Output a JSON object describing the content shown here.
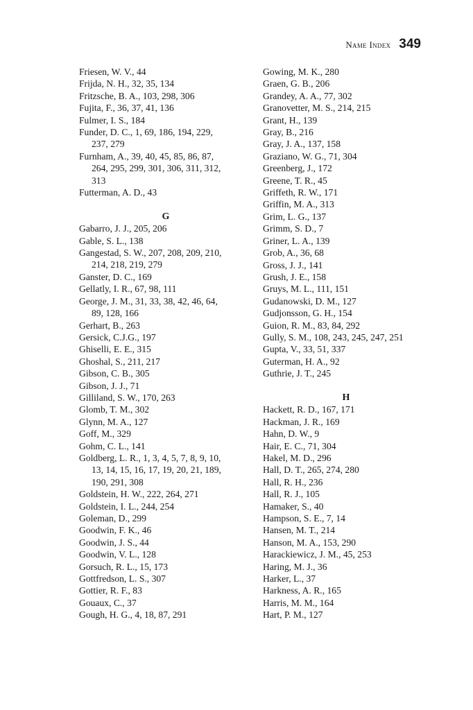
{
  "header": {
    "running_title": "Name Index",
    "page_number": "349"
  },
  "columns": [
    {
      "blocks": [
        {
          "type": "entries",
          "entries": [
            [
              "Friesen, W. V., 44"
            ],
            [
              "Frijda, N. H., 32, 35, 134"
            ],
            [
              "Fritzsche, B. A., 103, 298, 306"
            ],
            [
              "Fujita, F., 36, 37, 41, 136"
            ],
            [
              "Fulmer, I. S., 184"
            ],
            [
              "Funder, D. C., 1, 69, 186, 194, 229,",
              "237, 279"
            ],
            [
              "Furnham, A., 39, 40, 45, 85, 86, 87,",
              "264, 295, 299, 301, 306, 311, 312,",
              "313"
            ],
            [
              "Futterman, A. D., 43"
            ]
          ]
        },
        {
          "type": "letter",
          "label": "G"
        },
        {
          "type": "entries",
          "entries": [
            [
              "Gabarro, J. J., 205, 206"
            ],
            [
              "Gable, S. L., 138"
            ],
            [
              "Gangestad, S. W., 207, 208, 209, 210,",
              "214, 218, 219, 279"
            ],
            [
              "Ganster, D. C., 169"
            ],
            [
              "Gellatly, I. R., 67, 98, 111"
            ],
            [
              "George, J. M., 31, 33, 38, 42, 46, 64,",
              "89, 128, 166"
            ],
            [
              "Gerhart, B., 263"
            ],
            [
              "Gersick, C.J.G., 197"
            ],
            [
              "Ghiselli, E. E., 315"
            ],
            [
              "Ghoshal, S., 211, 217"
            ],
            [
              "Gibson, C. B., 305"
            ],
            [
              "Gibson, J. J., 71"
            ],
            [
              "Gilliland, S. W., 170, 263"
            ],
            [
              "Glomb, T. M., 302"
            ],
            [
              "Glynn, M. A., 127"
            ],
            [
              "Goff, M., 329"
            ],
            [
              "Gohm, C. L., 141"
            ],
            [
              "Goldberg, L. R., 1, 3, 4, 5, 7, 8, 9, 10,",
              "13, 14, 15, 16, 17, 19, 20, 21, 189,",
              "190, 291, 308"
            ],
            [
              "Goldstein, H. W., 222, 264, 271"
            ],
            [
              "Goldstein, I. L., 244, 254"
            ],
            [
              "Goleman, D., 299"
            ],
            [
              "Goodwin, F. K., 46"
            ],
            [
              "Goodwin, J. S., 44"
            ],
            [
              "Goodwin, V. L., 128"
            ],
            [
              "Gorsuch, R. L., 15, 173"
            ],
            [
              "Gottfredson, L. S., 307"
            ],
            [
              "Gottier, R. F., 83"
            ],
            [
              "Gouaux, C., 37"
            ],
            [
              "Gough, H. G., 4, 18, 87, 291"
            ]
          ]
        }
      ]
    },
    {
      "blocks": [
        {
          "type": "entries",
          "entries": [
            [
              "Gowing, M. K., 280"
            ],
            [
              "Graen, G. B., 206"
            ],
            [
              "Grandey, A. A., 77, 302"
            ],
            [
              "Granovetter, M. S., 214, 215"
            ],
            [
              "Grant, H., 139"
            ],
            [
              "Gray, B., 216"
            ],
            [
              "Gray, J. A., 137, 158"
            ],
            [
              "Graziano, W. G., 71, 304"
            ],
            [
              "Greenberg, J., 172"
            ],
            [
              "Greene, T. R., 45"
            ],
            [
              "Griffeth, R. W., 171"
            ],
            [
              "Griffin, M. A., 313"
            ],
            [
              "Grim, L. G., 137"
            ],
            [
              "Grimm, S. D., 7"
            ],
            [
              "Griner, L. A., 139"
            ],
            [
              "Grob, A., 36, 68"
            ],
            [
              "Gross, J. J., 141"
            ],
            [
              "Grush, J. E., 158"
            ],
            [
              "Gruys, M. L., 111, 151"
            ],
            [
              "Gudanowski, D. M., 127"
            ],
            [
              "Gudjonsson, G. H., 154"
            ],
            [
              "Guion, R. M., 83, 84, 292"
            ],
            [
              "Gully, S. M., 108, 243, 245, 247, 251"
            ],
            [
              "Gupta, V., 33, 51, 337"
            ],
            [
              "Guterman, H. A., 92"
            ],
            [
              "Guthrie, J. T., 245"
            ]
          ]
        },
        {
          "type": "letter",
          "label": "H"
        },
        {
          "type": "entries",
          "entries": [
            [
              "Hackett, R. D., 167, 171"
            ],
            [
              "Hackman, J. R., 169"
            ],
            [
              "Hahn, D. W., 9"
            ],
            [
              "Hair, E. C., 71, 304"
            ],
            [
              "Hakel, M. D., 296"
            ],
            [
              "Hall, D. T., 265, 274, 280"
            ],
            [
              "Hall, R. H., 236"
            ],
            [
              "Hall, R. J., 105"
            ],
            [
              "Hamaker, S., 40"
            ],
            [
              "Hampson, S. E., 7, 14"
            ],
            [
              "Hansen, M. T., 214"
            ],
            [
              "Hanson, M. A., 153, 290"
            ],
            [
              "Harackiewicz, J. M., 45, 253"
            ],
            [
              "Haring, M. J., 36"
            ],
            [
              "Harker, L., 37"
            ],
            [
              "Harkness, A. R., 165"
            ],
            [
              "Harris, M. M., 164"
            ],
            [
              "Hart, P. M., 127"
            ]
          ]
        }
      ]
    }
  ]
}
